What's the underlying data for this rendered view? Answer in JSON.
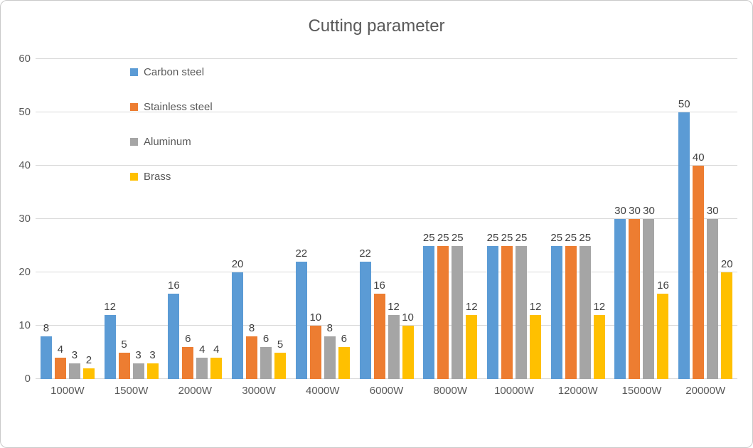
{
  "chart_data": {
    "type": "bar",
    "title": "Cutting parameter",
    "categories": [
      "1000W",
      "1500W",
      "2000W",
      "3000W",
      "4000W",
      "6000W",
      "8000W",
      "10000W",
      "12000W",
      "15000W",
      "20000W"
    ],
    "series": [
      {
        "name": "Carbon steel",
        "color": "#5B9BD5",
        "values": [
          8,
          12,
          16,
          20,
          22,
          22,
          25,
          25,
          25,
          30,
          50
        ]
      },
      {
        "name": "Stainless steel",
        "color": "#ED7D31",
        "values": [
          4,
          5,
          6,
          8,
          10,
          16,
          25,
          25,
          25,
          30,
          40
        ]
      },
      {
        "name": "Aluminum",
        "color": "#A5A5A5",
        "values": [
          3,
          3,
          4,
          6,
          8,
          12,
          25,
          25,
          25,
          30,
          30
        ]
      },
      {
        "name": "Brass",
        "color": "#FFC000",
        "values": [
          2,
          3,
          4,
          5,
          6,
          10,
          12,
          12,
          12,
          16,
          20
        ]
      }
    ],
    "xlabel": "",
    "ylabel": "",
    "ylim": [
      0,
      60
    ],
    "yticks": [
      0,
      10,
      20,
      30,
      40,
      50,
      60
    ],
    "grid": true,
    "data_labels": true,
    "legend_position": "upper-left-vertical"
  },
  "colors": {
    "gridline": "#D9D9D9",
    "axis_text": "#595959",
    "title_text": "#595959",
    "data_label_text": "#404040",
    "chart_border": "#C9C9C9",
    "background": "#FFFFFF"
  }
}
